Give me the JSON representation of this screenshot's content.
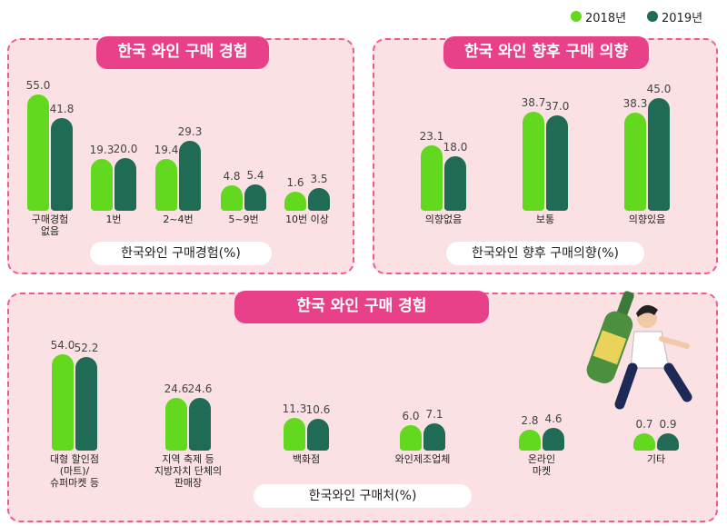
{
  "legend": [
    {
      "name": "2018년",
      "color": "#62d81f"
    },
    {
      "name": "2019년",
      "color": "#1f6b55"
    }
  ],
  "chart_data": [
    {
      "type": "bar",
      "title": "한국 와인 구매 경험",
      "xlabel": "한국와인 구매경험(%)",
      "categories": [
        "구매경험\n없음",
        "1번",
        "2~4번",
        "5~9번",
        "10번 이상"
      ],
      "series": [
        {
          "color": "#62d81f",
          "values": [
            55.0,
            19.3,
            19.4,
            4.8,
            1.6
          ],
          "value_labels": [
            "55.0",
            "19.3",
            "19.4",
            "4.8",
            "1.6"
          ]
        },
        {
          "color": "#1f6b55",
          "values": [
            41.8,
            20.0,
            29.3,
            5.4,
            3.5
          ],
          "value_labels": [
            "41.8",
            "20.0",
            "29.3",
            "5.4",
            "3.5"
          ]
        }
      ]
    },
    {
      "type": "bar",
      "title": "한국 와인 향후 구매 의향",
      "xlabel": "한국와인 향후 구매의향(%)",
      "categories": [
        "의향없음",
        "보통",
        "의향있음"
      ],
      "series": [
        {
          "color": "#62d81f",
          "values": [
            23.1,
            38.7,
            38.3
          ],
          "value_labels": [
            "23.1",
            "38.7",
            "38.3"
          ]
        },
        {
          "color": "#1f6b55",
          "values": [
            18.0,
            37.0,
            45.0
          ],
          "value_labels": [
            "18.0",
            "37.0",
            "45.0"
          ]
        }
      ]
    },
    {
      "type": "bar",
      "title": "한국 와인 구매 경험",
      "xlabel": "한국와인 구매처(%)",
      "categories": [
        "대형 할인점\n(마트)/\n슈퍼마켓 등",
        "지역 축제 등\n지방자치 단체의\n판매장",
        "백화점",
        "와인제조업체",
        "온라인\n마켓",
        "기타"
      ],
      "series": [
        {
          "color": "#62d81f",
          "values": [
            54.0,
            24.6,
            11.3,
            6.0,
            2.8,
            0.7
          ],
          "value_labels": [
            "54.0",
            "24.6",
            "11.3",
            "6.0",
            "2.8",
            "0.7"
          ]
        },
        {
          "color": "#1f6b55",
          "values": [
            52.2,
            24.6,
            10.6,
            7.1,
            4.6,
            0.9
          ],
          "value_labels": [
            "52.2",
            "24.6",
            "10.6",
            "7.1",
            "4.6",
            "0.9"
          ]
        }
      ]
    }
  ]
}
